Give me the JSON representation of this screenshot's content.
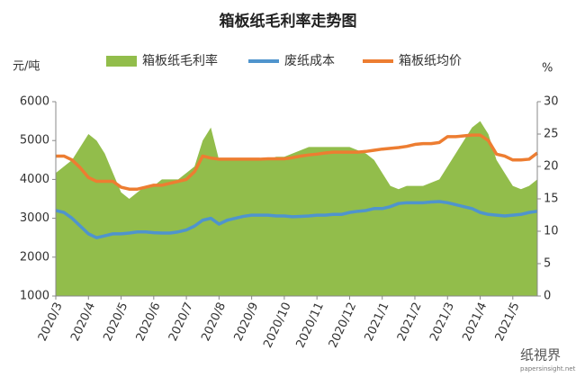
{
  "chart_data": {
    "type": "combo",
    "title": "箱板纸毛利率走势图",
    "y_label": "元/吨",
    "y2_label": "%",
    "categories": [
      "2020/3",
      null,
      null,
      null,
      "2020/4",
      null,
      null,
      null,
      "2020/5",
      null,
      null,
      null,
      "2020/6",
      null,
      null,
      null,
      "2020/7",
      null,
      null,
      null,
      "2020/8",
      null,
      null,
      null,
      "2020/9",
      null,
      null,
      null,
      "2020/10",
      null,
      null,
      null,
      "2020/11",
      null,
      null,
      null,
      "2020/12",
      null,
      null,
      null,
      "2021/1",
      null,
      null,
      null,
      "2021/2",
      null,
      null,
      null,
      "2021/3",
      null,
      null,
      null,
      "2021/4",
      null,
      null,
      null,
      "2021/5",
      null,
      null,
      null
    ],
    "series": [
      {
        "name": "箱板纸毛利率",
        "type": "area",
        "axis": "y2",
        "color": "#92bd4b",
        "values": [
          19,
          20,
          21,
          23,
          25,
          24,
          22,
          19,
          16,
          15,
          16,
          17,
          17,
          18,
          18,
          18,
          19,
          20,
          24,
          26,
          21,
          21,
          21,
          21,
          21,
          21,
          21,
          21.5,
          21.5,
          22,
          22.5,
          23,
          23,
          23,
          23,
          23,
          23,
          22.5,
          22,
          21,
          19,
          17,
          16.5,
          17,
          17,
          17,
          17.5,
          18,
          20,
          22,
          24,
          26,
          27,
          25,
          21,
          19,
          17,
          16.5,
          17,
          18
        ]
      },
      {
        "name": "废纸成本",
        "type": "line",
        "color": "#4f94cd",
        "values": [
          3200,
          3150,
          3000,
          2800,
          2600,
          2500,
          2550,
          2600,
          2600,
          2620,
          2650,
          2650,
          2630,
          2620,
          2620,
          2650,
          2700,
          2800,
          2950,
          3000,
          2850,
          2950,
          3000,
          3050,
          3080,
          3080,
          3080,
          3060,
          3060,
          3040,
          3050,
          3060,
          3080,
          3080,
          3100,
          3100,
          3150,
          3180,
          3200,
          3250,
          3250,
          3300,
          3380,
          3400,
          3400,
          3400,
          3420,
          3430,
          3400,
          3350,
          3300,
          3250,
          3150,
          3100,
          3080,
          3060,
          3080,
          3100,
          3150,
          3180
        ]
      },
      {
        "name": "箱板纸均价",
        "type": "line",
        "color": "#ed7d31",
        "values": [
          4600,
          4600,
          4500,
          4300,
          4050,
          3950,
          3950,
          3950,
          3800,
          3750,
          3750,
          3800,
          3850,
          3850,
          3900,
          3950,
          4000,
          4200,
          4600,
          4550,
          4520,
          4520,
          4520,
          4520,
          4520,
          4520,
          4530,
          4530,
          4530,
          4560,
          4600,
          4630,
          4650,
          4680,
          4700,
          4700,
          4700,
          4700,
          4720,
          4750,
          4780,
          4800,
          4820,
          4850,
          4900,
          4920,
          4920,
          4950,
          5100,
          5100,
          5120,
          5140,
          5140,
          5000,
          4650,
          4600,
          4500,
          4500,
          4520,
          4680
        ]
      }
    ],
    "ylim": [
      1000,
      6000
    ],
    "yticks": [
      1000,
      2000,
      3000,
      4000,
      5000,
      6000
    ],
    "y2lim": [
      0,
      30
    ],
    "y2ticks": [
      0,
      5,
      10,
      15,
      20,
      25,
      30
    ],
    "grid": false
  },
  "logo": {
    "name": "纸視界",
    "url": "papersinsight.net"
  }
}
